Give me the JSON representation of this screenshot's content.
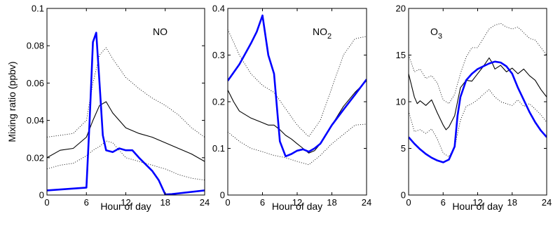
{
  "chart_data": [
    {
      "type": "line",
      "annotation": "NO",
      "xlabel": "Hour of day",
      "ylabel": "Mixing ratio (ppbv)",
      "xlim": [
        0,
        24
      ],
      "ylim": [
        0,
        0.1
      ],
      "xticks": [
        "0",
        "6",
        "12",
        "18",
        "24"
      ],
      "yticks": [
        "0",
        "0.02",
        "0.04",
        "0.06",
        "0.08",
        "0.1"
      ],
      "grid": false,
      "series": [
        {
          "style": "model",
          "color": "#0000ff",
          "x": [
            0,
            6,
            6.5,
            7,
            7.5,
            8,
            8.5,
            9,
            10,
            11,
            12,
            13,
            14,
            16,
            17,
            18,
            19,
            24
          ],
          "y": [
            0.0025,
            0.004,
            0.04,
            0.082,
            0.087,
            0.06,
            0.032,
            0.024,
            0.023,
            0.025,
            0.024,
            0.024,
            0.02,
            0.013,
            0.008,
            0.0003,
            0.0005,
            0.0025
          ]
        },
        {
          "style": "observed-mean",
          "color": "#000000",
          "x": [
            0,
            2,
            4,
            6,
            7,
            8,
            9,
            10,
            12,
            14,
            16,
            18,
            20,
            22,
            24
          ],
          "y": [
            0.02,
            0.024,
            0.025,
            0.031,
            0.04,
            0.048,
            0.05,
            0.044,
            0.036,
            0.033,
            0.031,
            0.028,
            0.025,
            0.022,
            0.018
          ]
        },
        {
          "style": "observed-bound",
          "color": "#000000",
          "x": [
            0,
            2,
            4,
            6,
            7,
            8,
            9,
            10,
            12,
            14,
            16,
            18,
            20,
            22,
            24
          ],
          "y": [
            0.031,
            0.032,
            0.033,
            0.04,
            0.06,
            0.075,
            0.079,
            0.073,
            0.063,
            0.057,
            0.052,
            0.048,
            0.043,
            0.036,
            0.031
          ]
        },
        {
          "style": "observed-bound",
          "color": "#000000",
          "x": [
            0,
            2,
            4,
            6,
            7,
            8,
            9,
            10,
            12,
            14,
            16,
            18,
            20,
            22,
            24
          ],
          "y": [
            0.014,
            0.016,
            0.017,
            0.021,
            0.024,
            0.026,
            0.029,
            0.028,
            0.02,
            0.018,
            0.016,
            0.014,
            0.011,
            0.009,
            0.008
          ]
        }
      ]
    },
    {
      "type": "line",
      "annotation": "NO",
      "annotation_subscript": "2",
      "xlabel": "Hour of day",
      "ylabel": "",
      "xlim": [
        0,
        24
      ],
      "ylim": [
        0,
        0.4
      ],
      "xticks": [
        "0",
        "6",
        "12",
        "18",
        "24"
      ],
      "yticks": [
        "0",
        "0.1",
        "0.2",
        "0.3",
        "0.4"
      ],
      "grid": false,
      "series": [
        {
          "style": "model",
          "color": "#0000ff",
          "x": [
            0,
            2,
            4,
            5,
            6,
            7,
            8,
            9,
            10,
            11,
            12,
            13,
            14,
            15,
            16,
            18,
            20,
            22,
            24
          ],
          "y": [
            0.245,
            0.28,
            0.325,
            0.35,
            0.385,
            0.3,
            0.26,
            0.115,
            0.083,
            0.088,
            0.095,
            0.098,
            0.093,
            0.1,
            0.11,
            0.15,
            0.183,
            0.215,
            0.248
          ]
        },
        {
          "style": "observed-mean",
          "color": "#000000",
          "x": [
            0,
            1,
            2,
            4,
            6,
            7,
            8,
            9,
            10,
            11,
            12,
            13,
            14,
            15,
            16,
            18,
            20,
            22,
            24
          ],
          "y": [
            0.225,
            0.2,
            0.18,
            0.165,
            0.155,
            0.15,
            0.15,
            0.14,
            0.128,
            0.12,
            0.11,
            0.1,
            0.09,
            0.095,
            0.11,
            0.15,
            0.19,
            0.22,
            0.245
          ]
        },
        {
          "style": "observed-bound",
          "color": "#000000",
          "x": [
            0,
            2,
            4,
            6,
            8,
            10,
            12,
            14,
            16,
            18,
            20,
            22,
            24
          ],
          "y": [
            0.355,
            0.3,
            0.26,
            0.235,
            0.22,
            0.185,
            0.15,
            0.125,
            0.16,
            0.23,
            0.3,
            0.335,
            0.34
          ]
        },
        {
          "style": "observed-bound",
          "color": "#000000",
          "x": [
            0,
            2,
            4,
            6,
            8,
            10,
            12,
            14,
            16,
            18,
            20,
            22,
            24
          ],
          "y": [
            0.135,
            0.115,
            0.1,
            0.093,
            0.085,
            0.08,
            0.072,
            0.065,
            0.085,
            0.11,
            0.13,
            0.15,
            0.152
          ]
        }
      ]
    },
    {
      "type": "line",
      "annotation": "O",
      "annotation_subscript": "3",
      "xlabel": "Hour of day",
      "ylabel": "",
      "xlim": [
        0,
        24
      ],
      "ylim": [
        0,
        20
      ],
      "xticks": [
        "0",
        "6",
        "12",
        "18",
        "24"
      ],
      "yticks": [
        "0",
        "5",
        "10",
        "15",
        "20"
      ],
      "grid": false,
      "series": [
        {
          "style": "model",
          "color": "#0000ff",
          "x": [
            0,
            1,
            2,
            3,
            4,
            5,
            6,
            7,
            7.5,
            8,
            8.5,
            9,
            10,
            11,
            12,
            14,
            15,
            16,
            17,
            18,
            19,
            20,
            21,
            22,
            23,
            24
          ],
          "y": [
            6.2,
            5.5,
            4.9,
            4.4,
            4.0,
            3.7,
            3.5,
            3.8,
            4.5,
            5.2,
            8.5,
            10.5,
            12.3,
            13.0,
            13.5,
            14.1,
            14.3,
            14.2,
            13.8,
            13.0,
            11.5,
            10.2,
            8.9,
            7.8,
            6.9,
            6.2
          ]
        },
        {
          "style": "observed-mean",
          "color": "#000000",
          "x": [
            0,
            1,
            1.5,
            2,
            3,
            4,
            5,
            6,
            6.5,
            7,
            8,
            9,
            10,
            11,
            12,
            13,
            14,
            14.5,
            15,
            16,
            17,
            18,
            19,
            20,
            21,
            22,
            23,
            24
          ],
          "y": [
            13,
            10.5,
            9.8,
            10.1,
            9.6,
            10.2,
            8.8,
            7.5,
            7.0,
            7.3,
            8.5,
            11.5,
            12.3,
            12.2,
            13.0,
            13.8,
            14.7,
            14.2,
            13.5,
            13.9,
            13.2,
            13.6,
            13.0,
            13.5,
            12.8,
            12.3,
            11.3,
            10.5
          ]
        },
        {
          "style": "observed-bound",
          "color": "#000000",
          "x": [
            0,
            1,
            2,
            3,
            4,
            5,
            6,
            7,
            8,
            9,
            10,
            11,
            12,
            13,
            14,
            15,
            16,
            17,
            18,
            19,
            20,
            21,
            22,
            23,
            24
          ],
          "y": [
            15,
            13.2,
            13.5,
            12.5,
            12.8,
            12.0,
            10.2,
            9.8,
            10.8,
            13.0,
            14.8,
            15.8,
            15.8,
            16.8,
            17.8,
            18.2,
            18.4,
            18.0,
            17.8,
            18.0,
            17.4,
            16.8,
            16.6,
            15.8,
            15.0
          ]
        },
        {
          "style": "observed-bound",
          "color": "#000000",
          "x": [
            0,
            1,
            2,
            3,
            4,
            5,
            6,
            7,
            8,
            9,
            10,
            11,
            12,
            13,
            14,
            15,
            16,
            17,
            18,
            19,
            20,
            21,
            22,
            23,
            24
          ],
          "y": [
            9.0,
            6.8,
            7.0,
            6.6,
            7.1,
            6.0,
            4.5,
            4.1,
            5.2,
            8.0,
            9.5,
            9.8,
            10.2,
            10.8,
            11.3,
            10.5,
            10.0,
            9.8,
            9.6,
            10.2,
            9.5,
            9.8,
            9.2,
            8.6,
            7.8
          ]
        }
      ]
    }
  ]
}
